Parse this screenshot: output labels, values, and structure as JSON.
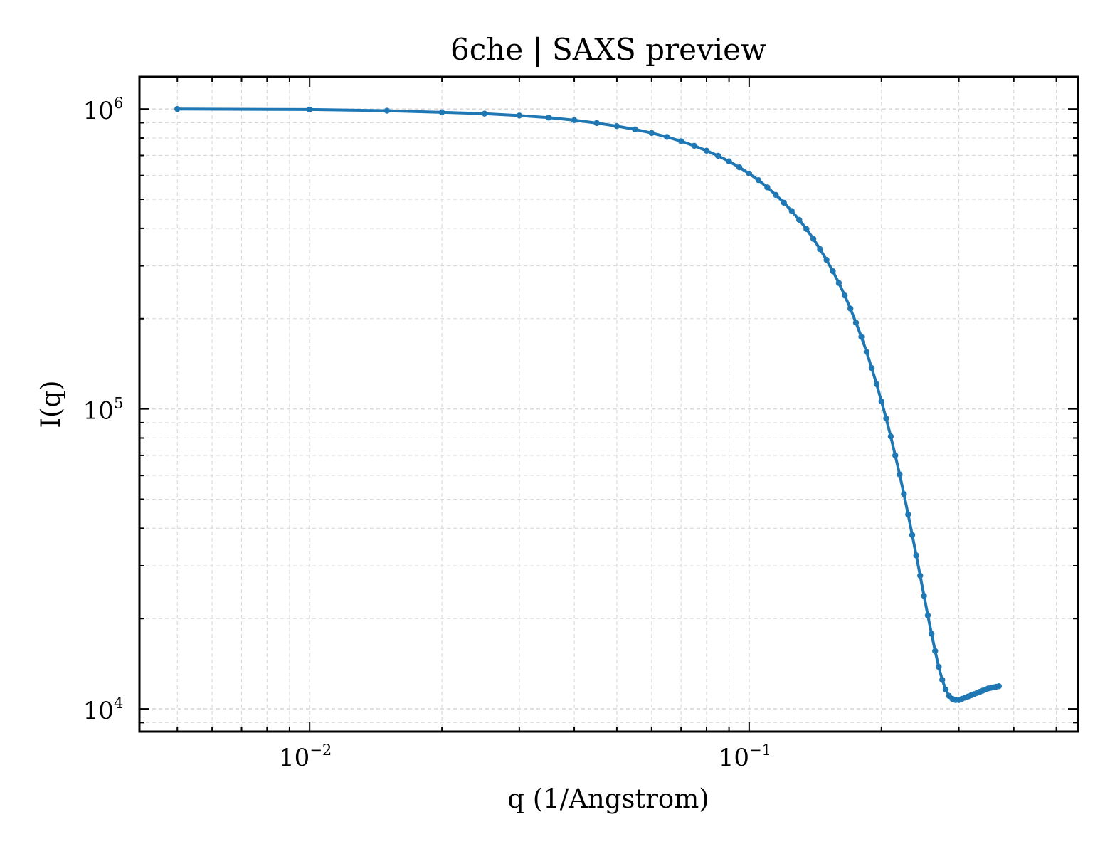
{
  "colors": {
    "line": "#1f77b4",
    "grid": "#d9d9d9",
    "axis": "#000000",
    "background": "#ffffff"
  },
  "chart_data": {
    "type": "line",
    "title": "6che | SAXS preview",
    "xlabel": "q (1/Angstrom)",
    "ylabel": "I(q)",
    "xscale": "log",
    "yscale": "log",
    "xlim": [
      0.0041,
      0.56
    ],
    "ylim": [
      8400,
      1280000
    ],
    "grid": true,
    "x_ticks": [
      {
        "value": 0.01,
        "base": "10",
        "exp": "−2"
      },
      {
        "value": 0.1,
        "base": "10",
        "exp": "−1"
      }
    ],
    "y_ticks": [
      {
        "value": 10000,
        "base": "10",
        "exp": "4"
      },
      {
        "value": 100000,
        "base": "10",
        "exp": "5"
      },
      {
        "value": 1000000,
        "base": "10",
        "exp": "6"
      }
    ],
    "series": [
      {
        "marker": "dot",
        "points": [
          [
            0.005,
            1000000
          ],
          [
            0.01,
            996000
          ],
          [
            0.015,
            987000
          ],
          [
            0.02,
            975000
          ],
          [
            0.025,
            965000
          ],
          [
            0.03,
            951000
          ],
          [
            0.035,
            936000
          ],
          [
            0.04,
            918000
          ],
          [
            0.045,
            898000
          ],
          [
            0.05,
            877000
          ],
          [
            0.055,
            855000
          ],
          [
            0.06,
            832000
          ],
          [
            0.065,
            807000
          ],
          [
            0.07,
            781000
          ],
          [
            0.075,
            754000
          ],
          [
            0.08,
            726000
          ],
          [
            0.085,
            698000
          ],
          [
            0.09,
            669000
          ],
          [
            0.095,
            639000
          ],
          [
            0.1,
            609000
          ],
          [
            0.105,
            579000
          ],
          [
            0.11,
            548000
          ],
          [
            0.115,
            517000
          ],
          [
            0.12,
            487000
          ],
          [
            0.125,
            457000
          ],
          [
            0.13,
            427000
          ],
          [
            0.135,
            398000
          ],
          [
            0.14,
            369000
          ],
          [
            0.145,
            341000
          ],
          [
            0.15,
            314000
          ],
          [
            0.155,
            288000
          ],
          [
            0.16,
            263000
          ],
          [
            0.165,
            239000
          ],
          [
            0.17,
            216000
          ],
          [
            0.175,
            194000
          ],
          [
            0.18,
            174000
          ],
          [
            0.185,
            155000
          ],
          [
            0.19,
            137000
          ],
          [
            0.195,
            121000
          ],
          [
            0.2,
            106000
          ],
          [
            0.205,
            93000
          ],
          [
            0.21,
            81000
          ],
          [
            0.215,
            70000
          ],
          [
            0.22,
            60500
          ],
          [
            0.225,
            52000
          ],
          [
            0.23,
            44500
          ],
          [
            0.235,
            38000
          ],
          [
            0.24,
            32500
          ],
          [
            0.245,
            27800
          ],
          [
            0.25,
            23800
          ],
          [
            0.255,
            20500
          ],
          [
            0.26,
            17800
          ],
          [
            0.265,
            15600
          ],
          [
            0.27,
            13800
          ],
          [
            0.275,
            12500
          ],
          [
            0.28,
            11600
          ],
          [
            0.285,
            11050
          ],
          [
            0.29,
            10800
          ],
          [
            0.295,
            10700
          ],
          [
            0.3,
            10700
          ],
          [
            0.305,
            10800
          ],
          [
            0.31,
            10900
          ],
          [
            0.315,
            11000
          ],
          [
            0.32,
            11100
          ],
          [
            0.325,
            11200
          ],
          [
            0.33,
            11300
          ],
          [
            0.335,
            11400
          ],
          [
            0.34,
            11500
          ],
          [
            0.345,
            11600
          ],
          [
            0.35,
            11700
          ],
          [
            0.355,
            11750
          ],
          [
            0.36,
            11800
          ],
          [
            0.365,
            11850
          ],
          [
            0.37,
            11900
          ]
        ]
      }
    ]
  }
}
